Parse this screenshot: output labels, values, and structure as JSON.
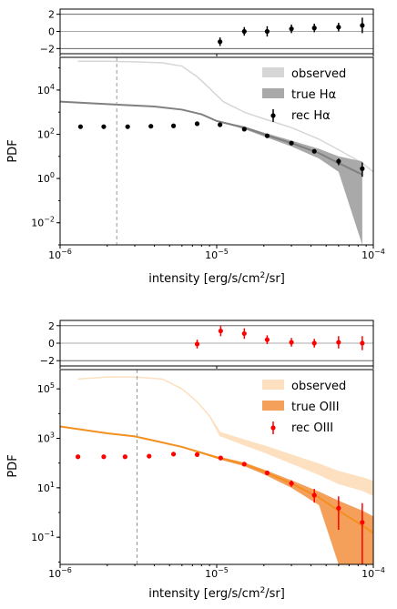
{
  "figure": {
    "background": "#ffffff",
    "panels": [
      "halpha",
      "oiii"
    ]
  },
  "chart_data": [
    {
      "id": "halpha",
      "type": "line",
      "xscale": "log",
      "yscale": "log",
      "xlim": [
        1e-06,
        0.0001
      ],
      "ylim": [
        0.001,
        300000.0
      ],
      "xlabel": "intensity [erg/s/cm",
      "xlabel_sup": "2",
      "xlabel_end": "/sr]",
      "ylabel": "PDF",
      "x_ticks": [
        {
          "value": 1e-06,
          "base": "10",
          "exp": "−6"
        },
        {
          "value": 1e-05,
          "base": "10",
          "exp": "−5"
        },
        {
          "value": 0.0001,
          "base": "10",
          "exp": "−4"
        }
      ],
      "y_ticks": [
        {
          "value": 0.01,
          "base": "10",
          "exp": "−2"
        },
        {
          "value": 1,
          "base": "10",
          "exp": "0"
        },
        {
          "value": 100,
          "base": "10",
          "exp": "2"
        },
        {
          "value": 10000,
          "base": "10",
          "exp": "4"
        }
      ],
      "vline_x": 2.3e-06,
      "legend_position": "top-right",
      "legend": {
        "observed": "observed",
        "true": "true Hα",
        "rec": "rec Hα"
      },
      "colors": {
        "observed": "#d6d6d6",
        "true_band": "#a9a9a9",
        "true_line": "#808080",
        "rec": "#000000",
        "vline": "#999999"
      },
      "observed": {
        "x": [
          1.3e-06,
          2e-06,
          3e-06,
          4.5e-06,
          6e-06,
          7.5e-06,
          9e-06,
          1.1e-05,
          1.5e-05,
          2e-05,
          3e-05,
          4.5e-05,
          6e-05,
          8.5e-05,
          0.0001
        ],
        "y": [
          200000.0,
          200000.0,
          190000.0,
          170000.0,
          120000.0,
          40000.0,
          12000.0,
          3000,
          1000,
          500,
          200,
          60,
          20,
          5,
          2
        ]
      },
      "true": {
        "x": [
          1e-06,
          2e-06,
          4e-06,
          6e-06,
          8e-06,
          1e-05,
          1.5e-05,
          2e-05,
          3e-05,
          4.5e-05,
          6e-05,
          8.5e-05
        ],
        "y": [
          3000,
          2300,
          1800,
          1300,
          800,
          400,
          200,
          100,
          40,
          14,
          5,
          1.5
        ],
        "y_low": [
          3000,
          2300,
          1800,
          1300,
          800,
          380,
          170,
          80,
          28,
          8,
          2,
          0.001
        ],
        "y_high": [
          3000,
          2300,
          1800,
          1300,
          800,
          420,
          230,
          120,
          52,
          22,
          10,
          6
        ]
      },
      "rec": {
        "x": [
          1.35e-06,
          1.9e-06,
          2.7e-06,
          3.8e-06,
          5.3e-06,
          7.5e-06,
          1.05e-05,
          1.5e-05,
          2.1e-05,
          3e-05,
          4.2e-05,
          6e-05,
          8.5e-05
        ],
        "y": [
          220,
          220,
          220,
          230,
          240,
          300,
          270,
          170,
          85,
          40,
          17,
          6,
          2.8
        ],
        "err_low": [
          0,
          0,
          0,
          0,
          0,
          0,
          40,
          25,
          12,
          6,
          3,
          2,
          1.6
        ],
        "err_high": [
          0,
          0,
          0,
          0,
          0,
          0,
          40,
          25,
          12,
          6,
          3,
          2,
          2.5
        ]
      },
      "residual": {
        "ylim": [
          -2.6,
          2.6
        ],
        "y_ticks": [
          {
            "value": -2,
            "label": "−2"
          },
          {
            "value": 0,
            "label": "0"
          },
          {
            "value": 2,
            "label": "2"
          }
        ],
        "x": [
          1.05e-05,
          1.5e-05,
          2.1e-05,
          3e-05,
          4.2e-05,
          6e-05,
          8.5e-05
        ],
        "y": [
          -1.2,
          0.0,
          0.0,
          0.3,
          0.4,
          0.5,
          0.7
        ],
        "err": [
          0.5,
          0.5,
          0.6,
          0.5,
          0.5,
          0.5,
          0.9
        ],
        "color": "#000000"
      }
    },
    {
      "id": "oiii",
      "type": "line",
      "xscale": "log",
      "yscale": "log",
      "xlim": [
        1e-06,
        0.0001
      ],
      "ylim": [
        0.008,
        600000.0
      ],
      "xlabel": "intensity [erg/s/cm",
      "xlabel_sup": "2",
      "xlabel_end": "/sr]",
      "ylabel": "PDF",
      "x_ticks": [
        {
          "value": 1e-06,
          "base": "10",
          "exp": "−6"
        },
        {
          "value": 1e-05,
          "base": "10",
          "exp": "−5"
        },
        {
          "value": 0.0001,
          "base": "10",
          "exp": "−4"
        }
      ],
      "y_ticks": [
        {
          "value": 0.1,
          "base": "10",
          "exp": "−1"
        },
        {
          "value": 10,
          "base": "10",
          "exp": "1"
        },
        {
          "value": 1000,
          "base": "10",
          "exp": "3"
        },
        {
          "value": 100000,
          "base": "10",
          "exp": "5"
        }
      ],
      "vline_x": 3.1e-06,
      "legend_position": "top-right",
      "legend": {
        "observed": "observed",
        "true": "true OIII",
        "rec": "rec OIII"
      },
      "colors": {
        "observed": "#fde0c0",
        "true_band": "#f5a05a",
        "true_line": "#f39020",
        "rec": "#ff0000",
        "vline": "#999999"
      },
      "observed": {
        "x": [
          1.3e-06,
          2e-06,
          3e-06,
          4.5e-06,
          6e-06,
          7.5e-06,
          9e-06,
          1.05e-05,
          1.5e-05,
          2.1e-05,
          3e-05,
          4.5e-05,
          6e-05,
          8.5e-05,
          0.0001
        ],
        "y": [
          250000.0,
          300000.0,
          300000.0,
          250000.0,
          100000.0,
          30000.0,
          8000,
          1500,
          700,
          350,
          150,
          60,
          30,
          15,
          10
        ],
        "y_low": [
          250000.0,
          300000.0,
          300000.0,
          250000.0,
          100000.0,
          30000.0,
          8000,
          1300,
          550,
          250,
          100,
          35,
          15,
          8,
          5
        ],
        "y_high": [
          250000.0,
          300000.0,
          300000.0,
          250000.0,
          100000.0,
          30000.0,
          8000,
          1700,
          850,
          450,
          210,
          90,
          45,
          25,
          18
        ]
      },
      "true": {
        "x": [
          1e-06,
          2e-06,
          3e-06,
          4e-06,
          6e-06,
          8e-06,
          1e-05,
          1.5e-05,
          2e-05,
          3e-05,
          4.5e-05,
          6e-05,
          8.5e-05,
          0.0001
        ],
        "y": [
          3000,
          1600,
          1200,
          800,
          450,
          260,
          170,
          90,
          45,
          15,
          4,
          1.2,
          0.3,
          0.15
        ],
        "y_low": [
          3000,
          1600,
          1200,
          800,
          450,
          240,
          150,
          75,
          35,
          10,
          2,
          0.008,
          0.008,
          0.008
        ],
        "y_high": [
          3000,
          1600,
          1200,
          800,
          450,
          280,
          190,
          105,
          55,
          20,
          7,
          3,
          1.2,
          0.7
        ]
      },
      "rec": {
        "x": [
          1.3e-06,
          1.9e-06,
          2.6e-06,
          3.7e-06,
          5.3e-06,
          7.5e-06,
          1.06e-05,
          1.5e-05,
          2.1e-05,
          3e-05,
          4.2e-05,
          6e-05,
          8.5e-05
        ],
        "y": [
          180,
          180,
          180,
          190,
          230,
          220,
          160,
          90,
          40,
          15,
          5,
          1.5,
          0.4
        ],
        "err_low": [
          0,
          0,
          0,
          0,
          0,
          20,
          20,
          12,
          7,
          4,
          2.5,
          1.3,
          0.392
        ],
        "err_high": [
          0,
          0,
          0,
          0,
          0,
          20,
          20,
          12,
          7,
          5,
          4,
          3,
          2
        ]
      },
      "residual": {
        "ylim": [
          -2.6,
          2.6
        ],
        "y_ticks": [
          {
            "value": -2,
            "label": "−2"
          },
          {
            "value": 0,
            "label": "0"
          },
          {
            "value": 2,
            "label": "2"
          }
        ],
        "x": [
          7.5e-06,
          1.06e-05,
          1.5e-05,
          2.1e-05,
          3e-05,
          4.2e-05,
          6e-05,
          8.5e-05
        ],
        "y": [
          -0.1,
          1.4,
          1.1,
          0.4,
          0.1,
          0.0,
          0.1,
          0.0
        ],
        "err": [
          0.5,
          0.6,
          0.6,
          0.5,
          0.5,
          0.5,
          0.7,
          0.8
        ],
        "color": "#ff0000"
      }
    }
  ]
}
